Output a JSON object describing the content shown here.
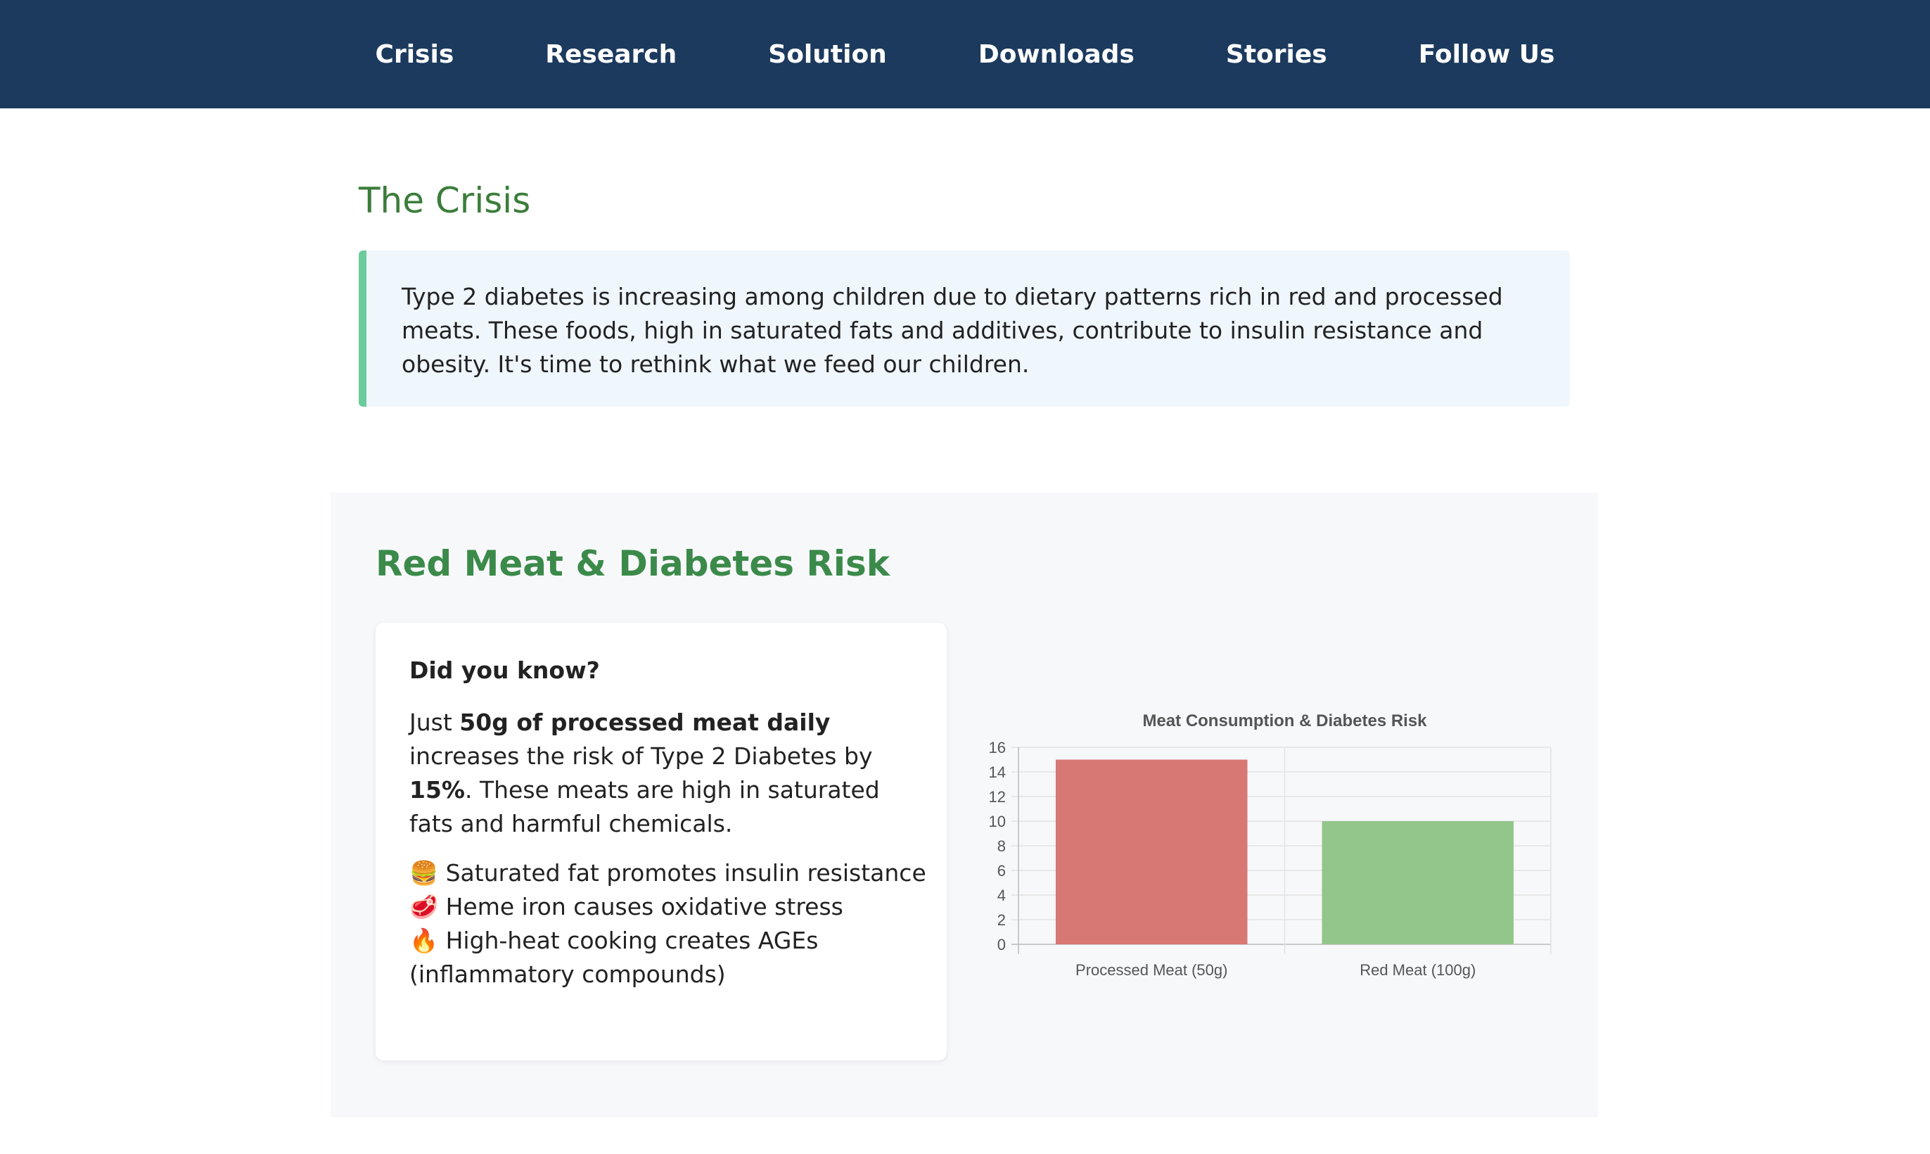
{
  "nav": {
    "items": [
      {
        "label": "Crisis"
      },
      {
        "label": "Research"
      },
      {
        "label": "Solution"
      },
      {
        "label": "Downloads"
      },
      {
        "label": "Stories"
      },
      {
        "label": "Follow Us"
      }
    ]
  },
  "crisis": {
    "title": "The Crisis",
    "text": "Type 2 diabetes is increasing among children due to dietary patterns rich in red and processed meats. These foods, high in saturated fats and additives, contribute to insulin resistance and obesity. It's time to rethink what we feed our children."
  },
  "risk_section": {
    "title": "Red Meat & Diabetes Risk",
    "card": {
      "heading": "Did you know?",
      "para_prefix": "Just ",
      "para_bold1": "50g of processed meat daily",
      "para_middle": " increases the risk of Type 2 Diabetes by ",
      "para_bold2": "15%",
      "para_suffix": ". These meats are high in saturated fats and harmful chemicals.",
      "facts": [
        {
          "icon": "🍔",
          "icon_name": "burger-icon",
          "text": "Saturated fat promotes insulin resistance"
        },
        {
          "icon": "🥩",
          "icon_name": "meat-icon",
          "text": "Heme iron causes oxidative stress"
        },
        {
          "icon": "🔥",
          "icon_name": "fire-icon",
          "text": "High-heat cooking creates AGEs (inflammatory compounds)"
        }
      ]
    }
  },
  "chart_data": {
    "type": "bar",
    "title": "Meat Consumption & Diabetes Risk",
    "categories": [
      "Processed Meat (50g)",
      "Red Meat (100g)"
    ],
    "values": [
      15,
      10
    ],
    "colors": [
      "#d77874",
      "#93c68a"
    ],
    "ylim": [
      0,
      16
    ],
    "yticks": [
      "0",
      "2",
      "4",
      "6",
      "8",
      "10",
      "12",
      "14",
      "16"
    ],
    "xlabel": "",
    "ylabel": "",
    "grid": true,
    "legend": "none"
  }
}
